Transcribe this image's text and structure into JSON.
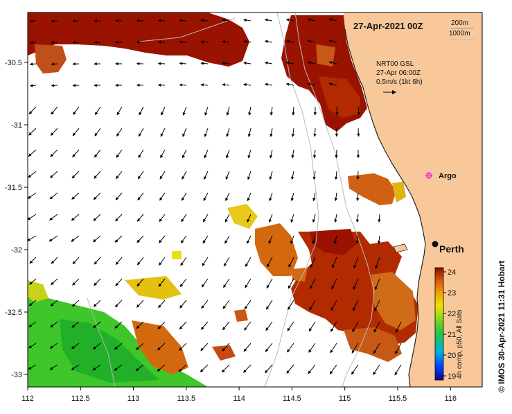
{
  "map": {
    "date_title": "27-Apr-2021 00Z",
    "contour_labels": [
      "200m",
      "1000m"
    ],
    "current_info": {
      "line1": "NRT00 GSL",
      "line2": "27-Apr 06:00Z",
      "line3": "0.5m/s (1kt 6h)"
    },
    "argo_label": "Argo",
    "city_label": "Perth",
    "x_axis": {
      "ticks": [
        "112",
        "112.5",
        "113",
        "113.5",
        "114",
        "114.5",
        "115",
        "115.5",
        "116"
      ],
      "range": [
        112,
        116.3
      ]
    },
    "y_axis": {
      "ticks": [
        "-30.5",
        "-31",
        "-31.5",
        "-32",
        "-32.5",
        "-33"
      ],
      "range": [
        -33.1,
        -30.1
      ]
    },
    "colorbar": {
      "ticks": [
        "24",
        "23",
        "22",
        "21",
        "20",
        "19"
      ],
      "caption": "4h comp, p50, All Sats",
      "range_min": 18.8,
      "range_max": 24.2
    },
    "credit": "© IMOS 30-Apr-2021 11:31 Hobart",
    "colors": {
      "land": "#f8c89a",
      "warm": "#b22a00",
      "hot": "#9a1200",
      "mid": "#d4680e",
      "yellow": "#f0d000",
      "green": "#3ec62a",
      "coast": "#222222",
      "contour": "#b8b8b8",
      "argo": "#ee22dd"
    }
  }
}
